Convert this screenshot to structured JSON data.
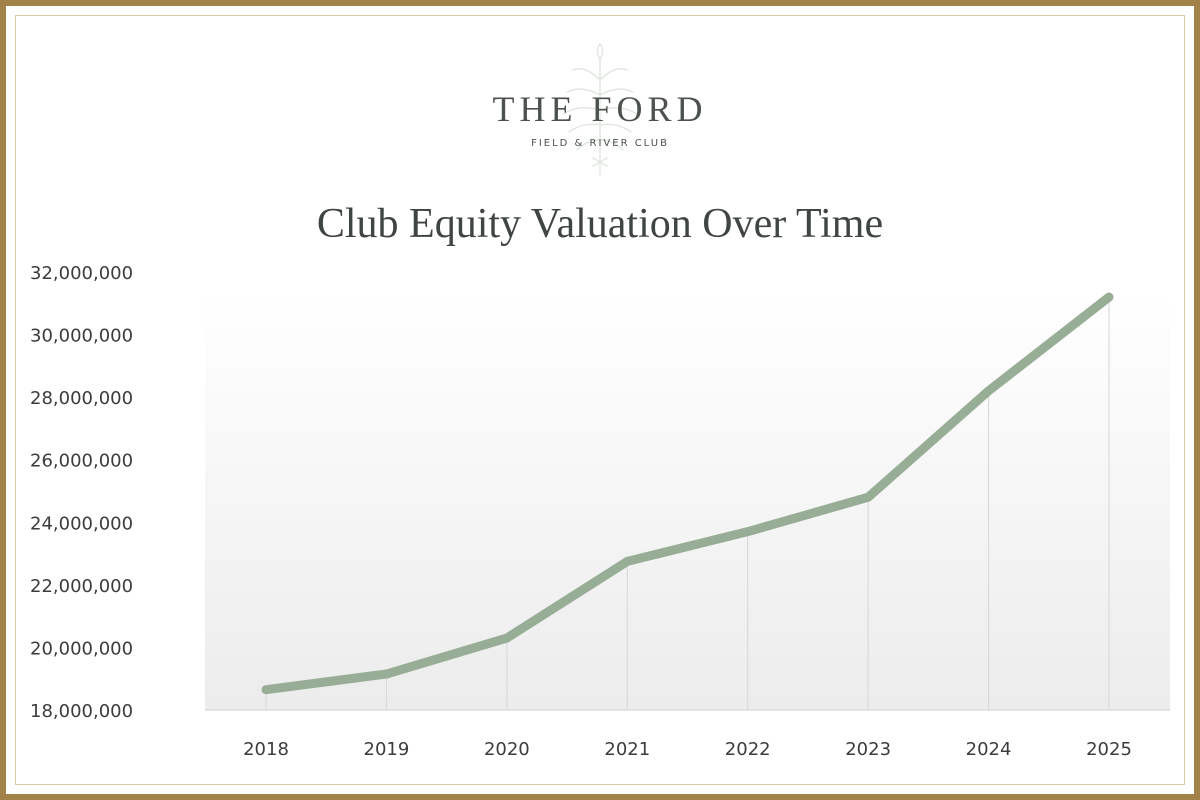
{
  "brand": {
    "name": "THE FORD",
    "subtitle": "FIELD & RIVER CLUB"
  },
  "colors": {
    "frame": "#a3824a",
    "line": "#97ad95",
    "text": "#4c524d",
    "plot_background_top": "#ffffff",
    "plot_background_bottom": "#eeeeee"
  },
  "icons": {
    "logo_emblem": "wheat-feather-emblem-icon"
  },
  "chart_data": {
    "type": "line",
    "title": "Club Equity Valuation Over Time",
    "xlabel": "",
    "ylabel": "",
    "categories": [
      "2018",
      "2019",
      "2020",
      "2021",
      "2022",
      "2023",
      "2024",
      "2025"
    ],
    "series": [
      {
        "values": [
          18650000,
          19150000,
          20300000,
          22750000,
          23700000,
          24800000,
          28200000,
          31200000
        ]
      }
    ],
    "y_ticks": [
      "18,000,000",
      "20,000,000",
      "22,000,000",
      "24,000,000",
      "26,000,000",
      "28,000,000",
      "30,000,000",
      "32,000,000"
    ],
    "ylim": [
      18000000,
      32000000
    ],
    "grid": "vertical lines at each year",
    "legend": "none"
  }
}
